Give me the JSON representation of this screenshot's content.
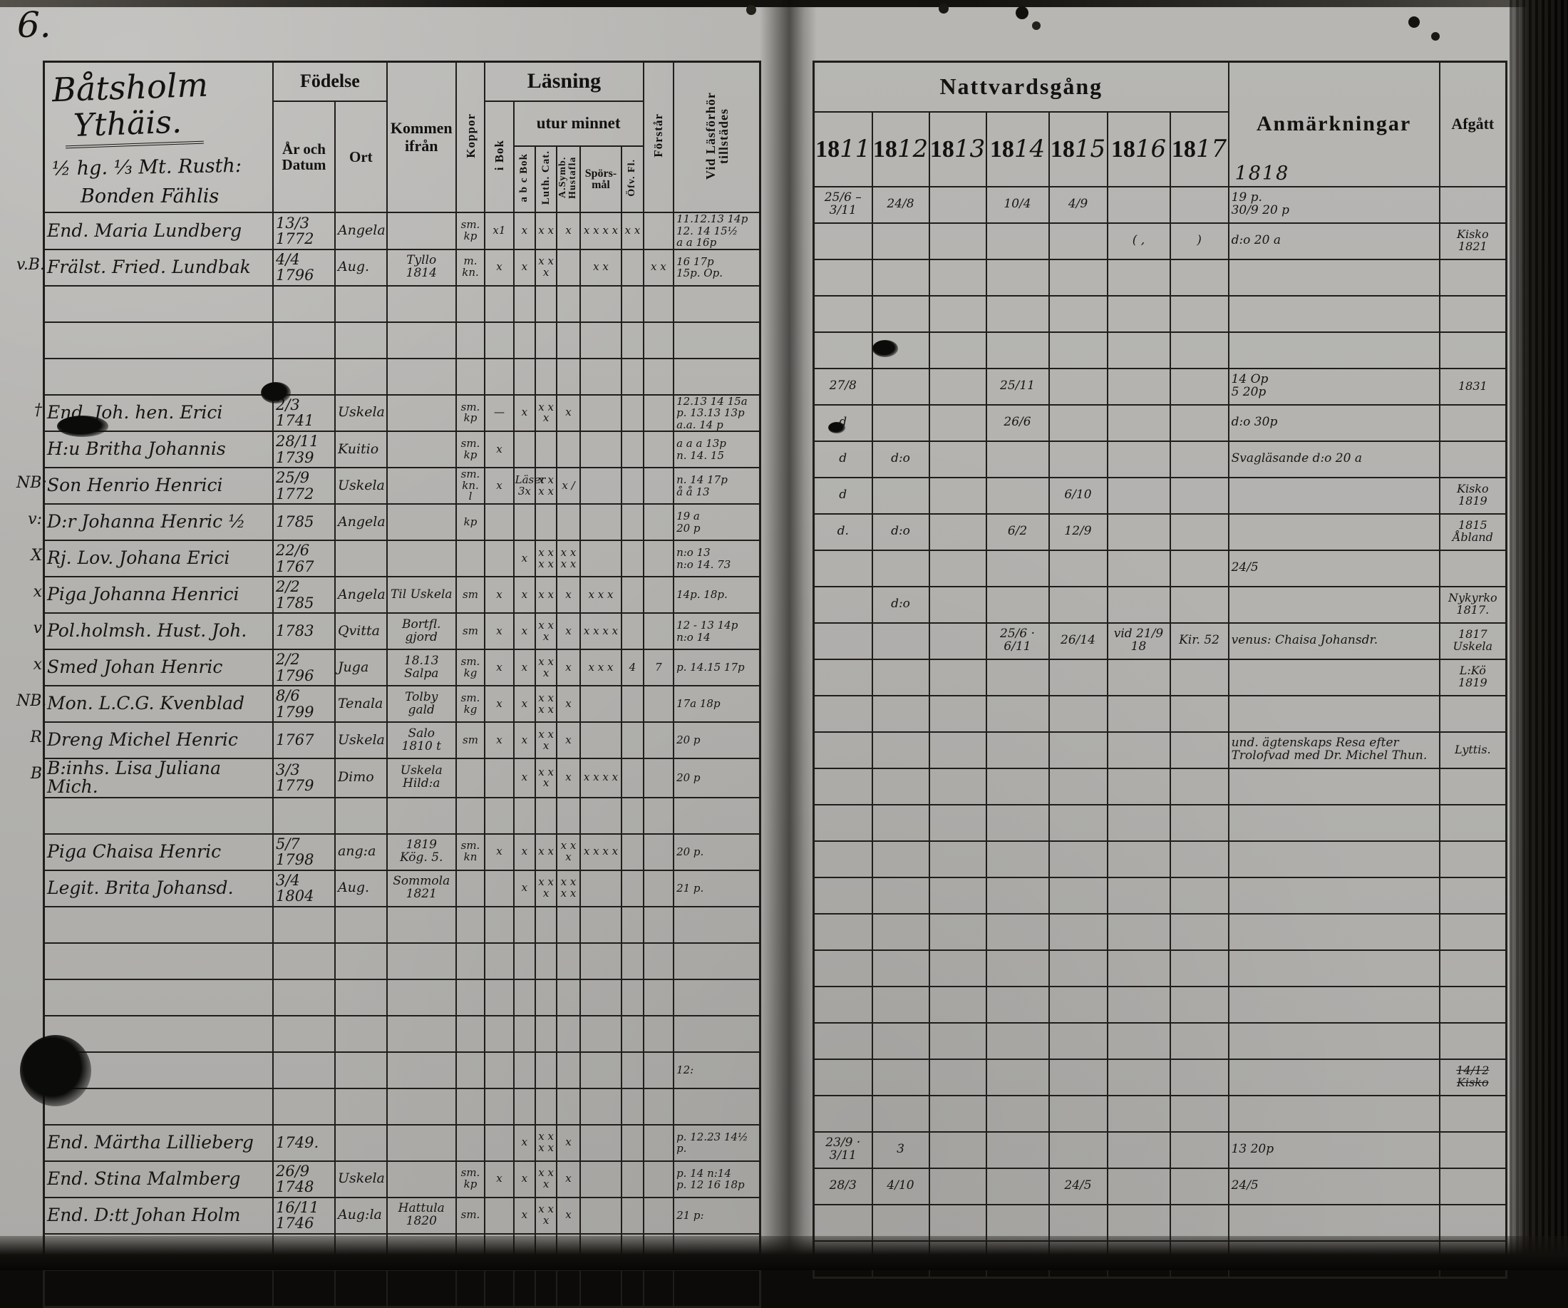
{
  "page_number": "6.",
  "left_page": {
    "title_lines": [
      "Båtsholm",
      "Ythäis.",
      "½ hg. ⅓ Mt. Rusth:",
      "Bonden Fählis"
    ],
    "cols": {
      "fodelse": "Födelse",
      "ar_och_datum": "År och Datum",
      "ort": "Ort",
      "kommen_ifran": "Kommen ifrån",
      "koppor": "Koppor",
      "lasning": "Läsning",
      "i_bok": "i Bok",
      "utur_minnet": "utur minnet",
      "abc_bok": "a b c Bok",
      "luth_cat": "Luth. Cat.",
      "symb_hustafla": "A.Symb. Hustafla",
      "sporsmal": "Spörs-mål",
      "ofv_fl": "Öfv. Fl.",
      "forstar": "Förstår",
      "vid_lasforhor": "Vid Läsförhör tillstädes"
    }
  },
  "right_page": {
    "nattvardsgang": "Nattvardsgång",
    "year_prefix": "18",
    "years": [
      "11",
      "12",
      "13",
      "14",
      "15",
      "16",
      "17"
    ],
    "extra_year": "1818",
    "anmarkningar": "Anmärkningar",
    "afgatt": "Afgått"
  },
  "rows": [
    {
      "m": "",
      "name": "End. Maria Lundberg",
      "born": "13/3 1772",
      "ort": "Angela",
      "from": "",
      "kop": "sm. kp",
      "marks": [
        "x1",
        "x",
        "x x",
        "x",
        "x x x x",
        "x x",
        ""
      ],
      "vid": "11.12.13 14p\n12. 14 15½\na a 16p",
      "y11": "25/6 – 3/11",
      "y12": "24/8",
      "y13": "",
      "y14": "10/4",
      "y15": "4/9",
      "y16": "",
      "y17": "",
      "anm": "19 p.\n30/9 20 p",
      "afg": ""
    },
    {
      "m": "v.B.",
      "name": "Frälst. Fried. Lundbak",
      "born": "4/4 1796",
      "ort": "Aug.",
      "from": "Tyllo\n1814",
      "kop": "m. kn.",
      "marks": [
        "x",
        "x",
        "x x x",
        "",
        "x x",
        "",
        "x x"
      ],
      "vid": "16 17p\n15p. Op.",
      "y16": "( ,",
      "y17": ")",
      "anm": "d:o 20 a",
      "afg": "Kisko\n1821"
    },
    {},
    {},
    {},
    {
      "m": "†",
      "name": "End. Joh. hen. Erici",
      "born": "2/3 1741",
      "ort": "Uskela",
      "kop": "sm. kp",
      "marks": [
        "—",
        "x",
        "x x x",
        "x",
        "",
        "",
        ""
      ],
      "vid": "12.13 14 15a\np. 13.13 13p\na.a. 14 p",
      "y11": "27/8",
      "y14": "25/11",
      "anm": "14 Op\n5  20p",
      "afg": "1831"
    },
    {
      "m": "",
      "name": "H:u Britha Johannis",
      "born": "28/11 1739",
      "ort": "Kuitio",
      "kop": "sm. kp",
      "marks": [
        "x",
        "",
        "",
        "",
        "",
        "",
        ""
      ],
      "vid": "a a a 13p\nn. 14. 15",
      "y11": "d",
      "y14": "26/6",
      "anm": "d:o 30p"
    },
    {
      "m": "NB:",
      "name": "Son Henrio Henrici",
      "born": "25/9 1772",
      "ort": "Uskela",
      "kop": "sm. kn. l",
      "marks": [
        "x",
        "Läser 3x",
        "x x x x",
        "x /",
        "",
        "",
        ""
      ],
      "vid": "n. 14 17p\nå å 13",
      "y11": "d",
      "y12": "d:o",
      "anm": "Svagläsande d:o 20 a"
    },
    {
      "m": "v:",
      "name": "D:r Johanna Henric ½",
      "born": "1785",
      "ort": "Angela",
      "kop": "kp",
      "marks": [
        "",
        "",
        "",
        "",
        "",
        "",
        ""
      ],
      "vid": "19 a\n20 p",
      "y11": "d",
      "y15": "6/10",
      "afg": "Kisko\n1819"
    },
    {
      "m": "X",
      "name": "Rj. Lov. Johana Erici",
      "born": "22/6 1767",
      "ort": "",
      "marks": [
        "",
        "x",
        "x x x x",
        "x x x x",
        "",
        "",
        ""
      ],
      "vid": "n:o 13\nn:o 14. 73",
      "y11": "d.",
      "y12": "d:o",
      "y14": "6/2",
      "y15": "12/9",
      "afg": "1815\nÅbland"
    },
    {
      "m": "x",
      "name": "Piga Johanna Henrici",
      "born": "2/2 1785",
      "ort": "Angela",
      "from": "Til Uskela",
      "kop": "sm",
      "marks": [
        "x",
        "x",
        "x x",
        "x",
        "x x x",
        "",
        ""
      ],
      "vid": "14p. 18p.",
      "anm": "24/5"
    },
    {
      "m": "v",
      "name": "Pol.holmsh. Hust. Joh.",
      "born": "1783",
      "ort": "Qvitta",
      "from": "Bortfl. gjord",
      "kop": "sm",
      "marks": [
        "x",
        "x",
        "x x x",
        "x",
        "x x x x",
        "",
        ""
      ],
      "vid": "12 - 13 14p\nn:o 14",
      "y12": "d:o",
      "afg": "Nykyrko\n1817."
    },
    {
      "m": "x",
      "name": "Smed Johan Henric",
      "born": "2/2 1796",
      "ort": "Juga",
      "from": "18.13 Salpa",
      "kop": "sm. kg",
      "marks": [
        "x",
        "x",
        "x x x",
        "x",
        "x x x",
        "4",
        "7"
      ],
      "vid": "p. 14.15 17p",
      "y14": "25/6 · 6/11",
      "y15": "26/14",
      "y16": "vid 21/9 18",
      "y17": "Kir. 52",
      "anm": "venus: Chaisa Johansdr.",
      "afg": "1817\nUskela"
    },
    {
      "m": "NB.",
      "name": "Mon. L.C.G. Kvenblad",
      "born": "8/6 1799",
      "ort": "Tenala",
      "from": "Tolby\ngald",
      "kop": "sm. kg",
      "marks": [
        "x",
        "x",
        "x x x x",
        "x",
        "",
        "",
        ""
      ],
      "vid": "17a 18p",
      "afg": "L:Kö\n1819"
    },
    {
      "m": "R",
      "name": "Dreng Michel Henric",
      "born": "1767",
      "ort": "Uskela",
      "from": "Salo\n1810 t",
      "kop": "sm",
      "marks": [
        "x",
        "x",
        "x x x",
        "x",
        "",
        "",
        ""
      ],
      "vid": "20 p"
    },
    {
      "m": "B",
      "name": "B:inhs. Lisa Juliana Mich.",
      "born": "3/3 1779",
      "ort": "Dimo",
      "from": "Uskela\nHild:a",
      "marks": [
        "",
        "x",
        "x x x",
        "x",
        "x x x x",
        "",
        ""
      ],
      "vid": "20 p",
      "anm": "und. ägtenskaps Resa efter\nTrolofvad med Dr. Michel Thun.",
      "afg": "Lyttis."
    },
    {},
    {
      "m": "",
      "name": "Piga Chaisa Henric",
      "born": "5/7 1798",
      "ort": "ang:a",
      "from": "1819\nKög. 5.",
      "kop": "sm. kn",
      "marks": [
        "x",
        "x",
        "x x",
        "x x x",
        "x x x x",
        "",
        ""
      ],
      "vid": "20 p."
    },
    {
      "m": "",
      "name": "Legit. Brita Johansd.",
      "born": "3/4 1804",
      "ort": "Aug.",
      "from": "Sommola\n1821",
      "marks": [
        "",
        "x",
        "x x x",
        "x x x x",
        "",
        "",
        ""
      ],
      "vid": "21 p."
    },
    {},
    {},
    {},
    {},
    {
      "vid": "12:"
    },
    {
      "afg": "14/12 Kisko",
      "afg_strike": true
    },
    {
      "m": "",
      "name": "End. Märtha Lillieberg",
      "born": "1749.",
      "marks": [
        "",
        "x",
        "x x x x",
        "x",
        "",
        "",
        ""
      ],
      "vid": "p. 12.23 14½ p."
    },
    {
      "m": "",
      "name": "End. Stina Malmberg",
      "born": "26/9 1748",
      "ort": "Uskela",
      "kop": "sm. kp",
      "marks": [
        "x",
        "x",
        "x x x",
        "x",
        "",
        "",
        ""
      ],
      "vid": "p. 14 n:14\np. 12 16 18p",
      "y11": "23/9 · 3/11",
      "y12": "3",
      "anm": "13 20p"
    },
    {
      "m": "",
      "name": "End. D:tt Johan Holm",
      "born": "16/11 1746",
      "ort": "Aug:la",
      "from": "Hattula\n1820",
      "kop": "sm.",
      "marks": [
        "",
        "x",
        "x x x",
        "x",
        "",
        "",
        ""
      ],
      "vid": "21 p:",
      "y11": "28/3",
      "y12": "4/10",
      "y15": "24/5",
      "anm": "24/5"
    },
    {},
    {}
  ]
}
